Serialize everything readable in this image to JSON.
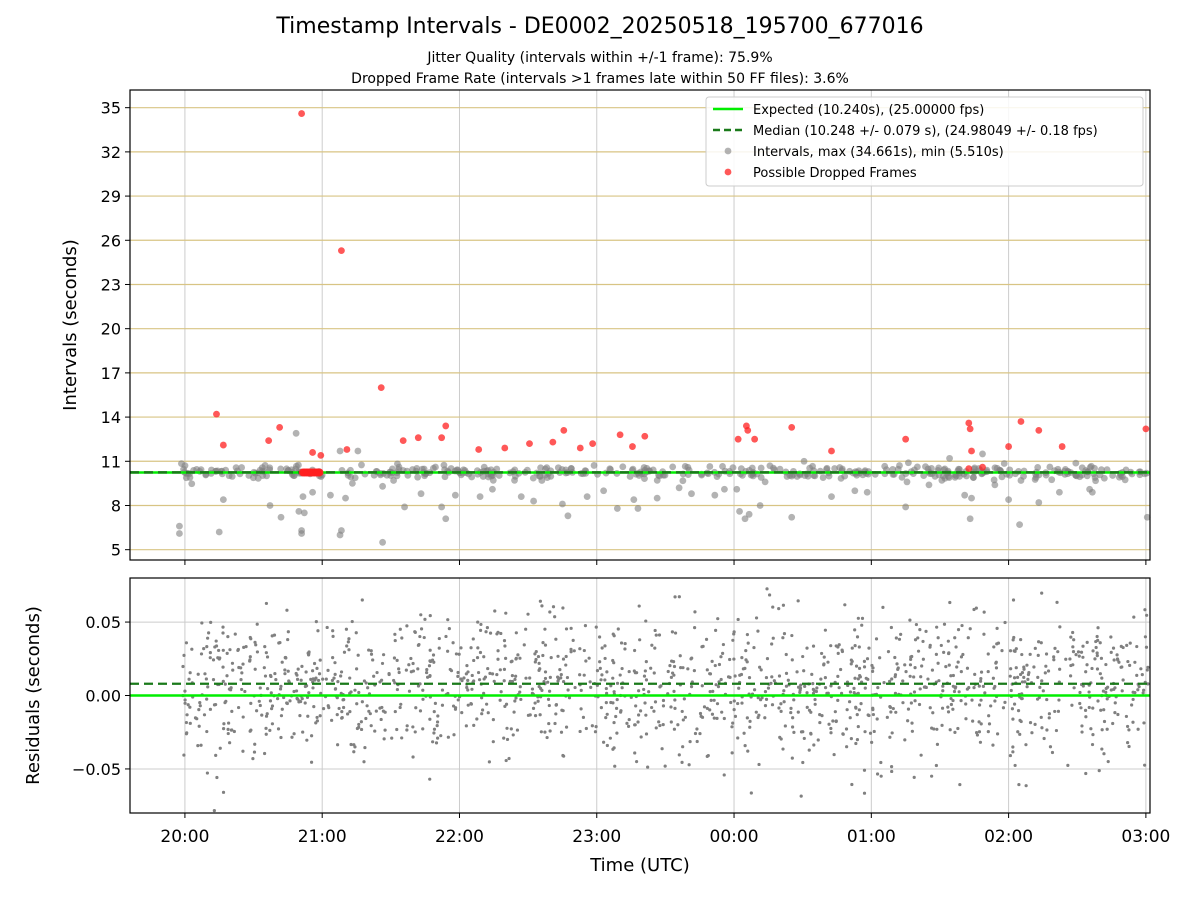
{
  "figure": {
    "title": "Timestamp Intervals - DE0002_20250518_195700_677016",
    "subtitle_1": "Jitter Quality (intervals within +/-1 frame): 75.9%",
    "subtitle_2": "Dropped Frame Rate (intervals >1 frames late within 50 FF files): 3.6%",
    "colors": {
      "expected": "#00ee00",
      "median": "#1a7a1a",
      "intervals": "#808080",
      "dropped": "#ff2020",
      "hgrid": "#d8c484",
      "vgrid": "#cccccc"
    }
  },
  "chart_data": [
    {
      "type": "scatter",
      "panel": "intervals",
      "ylabel": "Intervals (seconds)",
      "xlabel": "",
      "x_unit": "hours since 20:00 UTC",
      "xlim": [
        -0.4,
        7.03
      ],
      "ylim": [
        4.3,
        36.2
      ],
      "y_ticks": [
        5,
        8,
        11,
        14,
        17,
        20,
        23,
        26,
        29,
        32,
        35
      ],
      "x_ticks": [
        0,
        1,
        2,
        3,
        4,
        5,
        6,
        7
      ],
      "x_tick_labels": [
        "20:00",
        "21:00",
        "22:00",
        "23:00",
        "00:00",
        "01:00",
        "02:00",
        "03:00"
      ],
      "grid": "horizontal golden lines at y ticks, vertical gray lines at x ticks",
      "legend_position": "upper-right",
      "legend": [
        {
          "kind": "line",
          "label": "Expected (10.240s), (25.00000 fps)"
        },
        {
          "kind": "dashed",
          "label": "Median (10.248 +/- 0.079 s), (24.98049 +/- 0.18 fps)"
        },
        {
          "kind": "gray-dot",
          "label": "Intervals, max (34.661s), min (5.510s)"
        },
        {
          "kind": "red-dot",
          "label": "Possible Dropped Frames"
        }
      ],
      "expected_interval": 10.24,
      "median_interval": 10.248,
      "dropped_frames": [
        [
          0.23,
          14.2
        ],
        [
          0.28,
          12.1
        ],
        [
          0.61,
          12.4
        ],
        [
          0.69,
          13.3
        ],
        [
          0.85,
          34.6
        ],
        [
          0.93,
          11.6
        ],
        [
          0.99,
          11.4
        ],
        [
          1.14,
          25.3
        ],
        [
          1.18,
          11.8
        ],
        [
          1.43,
          16.0
        ],
        [
          1.59,
          12.4
        ],
        [
          1.7,
          12.6
        ],
        [
          1.87,
          12.6
        ],
        [
          1.9,
          13.4
        ],
        [
          2.14,
          11.8
        ],
        [
          2.33,
          11.9
        ],
        [
          2.51,
          12.2
        ],
        [
          2.68,
          12.3
        ],
        [
          2.76,
          13.1
        ],
        [
          2.88,
          11.9
        ],
        [
          2.97,
          12.2
        ],
        [
          3.17,
          12.8
        ],
        [
          3.26,
          12.0
        ],
        [
          3.35,
          12.7
        ],
        [
          4.03,
          12.5
        ],
        [
          4.09,
          13.4
        ],
        [
          4.1,
          13.1
        ],
        [
          4.15,
          12.5
        ],
        [
          4.42,
          13.3
        ],
        [
          4.71,
          11.7
        ],
        [
          5.25,
          12.5
        ],
        [
          5.71,
          13.6
        ],
        [
          5.72,
          13.2
        ],
        [
          5.73,
          11.7
        ],
        [
          5.71,
          10.5
        ],
        [
          5.81,
          10.6
        ],
        [
          6.0,
          12.0
        ],
        [
          6.09,
          13.7
        ],
        [
          6.22,
          13.1
        ],
        [
          6.39,
          12.0
        ],
        [
          7.0,
          13.2
        ]
      ],
      "dropped_cluster": {
        "x_from": 0.86,
        "x_to": 0.98,
        "y": 10.24
      },
      "outlier_intervals": [
        [
          -0.04,
          6.6
        ],
        [
          -0.04,
          6.1
        ],
        [
          0.25,
          6.2
        ],
        [
          0.28,
          8.4
        ],
        [
          0.62,
          8.0
        ],
        [
          0.7,
          7.2
        ],
        [
          0.83,
          7.6
        ],
        [
          0.85,
          6.3
        ],
        [
          0.85,
          6.1
        ],
        [
          0.87,
          7.5
        ],
        [
          0.86,
          8.6
        ],
        [
          0.81,
          12.9
        ],
        [
          0.93,
          8.9
        ],
        [
          1.06,
          8.7
        ],
        [
          1.13,
          6.0
        ],
        [
          1.14,
          6.3
        ],
        [
          1.17,
          8.5
        ],
        [
          1.22,
          9.5
        ],
        [
          1.26,
          11.7
        ],
        [
          1.13,
          11.7
        ],
        [
          1.44,
          5.5
        ],
        [
          1.44,
          9.3
        ],
        [
          1.6,
          7.9
        ],
        [
          1.72,
          8.8
        ],
        [
          1.87,
          7.9
        ],
        [
          1.9,
          7.1
        ],
        [
          1.97,
          8.7
        ],
        [
          2.15,
          8.6
        ],
        [
          2.24,
          9.1
        ],
        [
          2.45,
          8.6
        ],
        [
          2.54,
          8.3
        ],
        [
          2.75,
          8.1
        ],
        [
          2.79,
          7.3
        ],
        [
          2.93,
          8.6
        ],
        [
          3.05,
          9.0
        ],
        [
          3.15,
          7.8
        ],
        [
          3.27,
          8.4
        ],
        [
          3.3,
          7.8
        ],
        [
          3.44,
          8.5
        ],
        [
          3.6,
          9.2
        ],
        [
          3.69,
          8.8
        ],
        [
          3.86,
          8.7
        ],
        [
          3.93,
          9.1
        ],
        [
          4.02,
          9.1
        ],
        [
          4.04,
          7.6
        ],
        [
          4.08,
          7.1
        ],
        [
          4.11,
          7.4
        ],
        [
          4.19,
          8.0
        ],
        [
          4.42,
          7.2
        ],
        [
          4.51,
          11.0
        ],
        [
          4.71,
          8.6
        ],
        [
          4.88,
          9.0
        ],
        [
          4.97,
          8.9
        ],
        [
          5.25,
          7.9
        ],
        [
          5.27,
          10.9
        ],
        [
          5.42,
          9.4
        ],
        [
          5.57,
          11.2
        ],
        [
          5.68,
          8.7
        ],
        [
          5.72,
          7.1
        ],
        [
          5.73,
          8.5
        ],
        [
          5.81,
          11.5
        ],
        [
          5.9,
          9.4
        ],
        [
          6.0,
          8.4
        ],
        [
          6.08,
          6.7
        ],
        [
          6.09,
          9.7
        ],
        [
          6.22,
          8.2
        ],
        [
          6.37,
          8.9
        ],
        [
          6.59,
          9.1
        ],
        [
          6.61,
          8.9
        ],
        [
          6.63,
          9.9
        ],
        [
          7.01,
          7.2
        ],
        [
          5.26,
          9.6
        ],
        [
          3.48,
          10.3
        ],
        [
          2.6,
          9.7
        ],
        [
          1.52,
          9.7
        ]
      ]
    },
    {
      "type": "scatter",
      "panel": "residuals",
      "ylabel": "Residuals (seconds)",
      "xlabel": "Time (UTC)",
      "x_unit": "hours since 20:00 UTC",
      "xlim": [
        -0.4,
        7.03
      ],
      "ylim": [
        -0.08,
        0.08
      ],
      "y_ticks": [
        -0.05,
        0.0,
        0.05
      ],
      "y_tick_labels": [
        "−0.05",
        "0.00",
        "0.05"
      ],
      "x_ticks": [
        0,
        1,
        2,
        3,
        4,
        5,
        6,
        7
      ],
      "x_tick_labels": [
        "20:00",
        "21:00",
        "22:00",
        "23:00",
        "00:00",
        "01:00",
        "02:00",
        "03:00"
      ],
      "grid": "horizontal and vertical gray lines",
      "zero_line": 0.0,
      "median_offset": 0.008,
      "scatter_x_range": [
        -0.02,
        7.02
      ],
      "scatter_spread": 0.025
    }
  ]
}
